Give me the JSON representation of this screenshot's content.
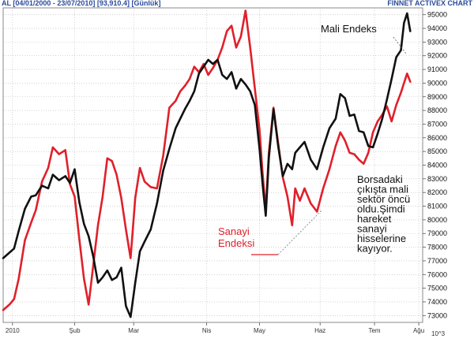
{
  "header": {
    "left": "AL [04/01/2000 - 23/07/2010] [93,910.4] [Günlük]",
    "right": "FINNET ACTIVEX CHART"
  },
  "axis": {
    "scale_note": "10^3"
  },
  "annotations": {
    "mali_label": "Mali Endeks",
    "sanayi_label_line1": "Sanayi",
    "sanayi_label_line2": "Endeksi",
    "note_lines": [
      "Borsadaki",
      "çıkışta mali",
      "sektör öncü",
      "oldu.Şimdi",
      "hareket",
      "sanayi",
      "hisselerine",
      "kayıyor."
    ]
  },
  "colors": {
    "mali": "#111111",
    "sanayi": "#e0202a",
    "grid": "#b8b8b8",
    "header": "#2a4a9a"
  },
  "chart_data": {
    "type": "line",
    "title": "",
    "xlabel": "",
    "ylabel": "",
    "ylim": [
      72500,
      95500
    ],
    "yticks": [
      73000,
      74000,
      75000,
      76000,
      77000,
      78000,
      79000,
      80000,
      81000,
      82000,
      83000,
      84000,
      85000,
      86000,
      87000,
      88000,
      89000,
      90000,
      91000,
      92000,
      93000,
      94000,
      95000
    ],
    "ytick_labels": [
      "73000",
      "74000",
      "75000",
      "76000",
      "77000",
      "78000",
      "79000",
      "80000",
      "81000",
      "82000",
      "83000",
      "84000",
      "85000",
      "86000",
      "87000",
      "88000",
      "89000",
      "90000",
      "91000",
      "92000",
      "93000",
      "94000",
      "95000"
    ],
    "xlim": [
      0,
      540
    ],
    "xticks": [
      {
        "x": 12,
        "label": "2010"
      },
      {
        "x": 92,
        "label": "Şub"
      },
      {
        "x": 168,
        "label": "Mar"
      },
      {
        "x": 262,
        "label": "Nis"
      },
      {
        "x": 330,
        "label": "May"
      },
      {
        "x": 408,
        "label": "Haz"
      },
      {
        "x": 478,
        "label": "Tem"
      },
      {
        "x": 535,
        "label": "Ağu"
      }
    ],
    "series": [
      {
        "name": "Mali Endeks",
        "x": [
          0,
          8,
          14,
          20,
          28,
          36,
          42,
          50,
          58,
          64,
          72,
          80,
          86,
          92,
          98,
          104,
          110,
          116,
          122,
          128,
          134,
          140,
          146,
          152,
          158,
          164,
          170,
          176,
          182,
          190,
          198,
          206,
          214,
          222,
          228,
          234,
          240,
          246,
          252,
          258,
          264,
          270,
          276,
          282,
          288,
          294,
          300,
          306,
          312,
          318,
          324,
          330,
          334,
          338,
          342,
          348,
          354,
          360,
          366,
          372,
          376,
          382,
          388,
          396,
          404,
          412,
          420,
          428,
          434,
          440,
          446,
          452,
          458,
          464,
          470,
          476,
          482,
          488,
          494,
          500,
          506,
          512,
          516,
          520,
          524
        ],
        "y": [
          77200,
          77600,
          77900,
          79200,
          80800,
          81700,
          81800,
          82500,
          82300,
          83300,
          82900,
          83200,
          82700,
          83700,
          81300,
          79700,
          78800,
          77300,
          75400,
          75800,
          76300,
          75600,
          75800,
          76500,
          73700,
          72900,
          75400,
          77700,
          78400,
          79300,
          81200,
          83600,
          85200,
          86700,
          87400,
          88100,
          88700,
          89400,
          90700,
          91200,
          91700,
          91400,
          91700,
          90600,
          90300,
          90800,
          89600,
          90300,
          89900,
          89400,
          88400,
          85200,
          82600,
          80300,
          84500,
          88100,
          85400,
          83200,
          84100,
          83700,
          84900,
          85300,
          85700,
          84400,
          83700,
          85300,
          86700,
          87400,
          89200,
          88900,
          87600,
          87700,
          86500,
          86400,
          85400,
          85300,
          86300,
          87400,
          88800,
          90300,
          91900,
          92400,
          94400,
          95100,
          93800
        ]
      },
      {
        "name": "Sanayi Endeksi",
        "x": [
          0,
          8,
          14,
          20,
          28,
          36,
          42,
          50,
          58,
          64,
          72,
          80,
          86,
          92,
          98,
          104,
          110,
          116,
          122,
          128,
          134,
          140,
          146,
          152,
          158,
          164,
          170,
          176,
          182,
          190,
          198,
          206,
          214,
          222,
          228,
          234,
          240,
          246,
          252,
          258,
          264,
          270,
          276,
          282,
          288,
          294,
          300,
          306,
          312,
          318,
          324,
          330,
          334,
          338,
          342,
          348,
          354,
          360,
          366,
          372,
          376,
          382,
          388,
          396,
          404,
          412,
          420,
          428,
          434,
          440,
          446,
          452,
          458,
          464,
          470,
          476,
          482,
          488,
          494,
          500,
          506,
          512,
          516,
          520,
          524
        ],
        "y": [
          73400,
          73800,
          74200,
          75700,
          78500,
          79800,
          80700,
          82800,
          83800,
          85300,
          84800,
          85100,
          82600,
          81700,
          78600,
          75700,
          73800,
          76700,
          79600,
          81700,
          84500,
          84300,
          83300,
          81600,
          79300,
          77200,
          81600,
          83800,
          82800,
          82400,
          82300,
          84700,
          88200,
          88700,
          89400,
          89800,
          90300,
          91200,
          90800,
          91400,
          90600,
          91100,
          91700,
          92600,
          93800,
          94200,
          92600,
          93400,
          95300,
          92600,
          89600,
          86600,
          83400,
          80700,
          84900,
          88200,
          85600,
          83100,
          81700,
          79600,
          82300,
          81400,
          82300,
          81200,
          80600,
          82300,
          83700,
          85400,
          86400,
          85800,
          84900,
          84800,
          84400,
          84100,
          84900,
          86400,
          87200,
          87700,
          88300,
          87200,
          88400,
          89300,
          90000,
          90700,
          90100
        ]
      }
    ],
    "grid": true,
    "legend": "none"
  }
}
